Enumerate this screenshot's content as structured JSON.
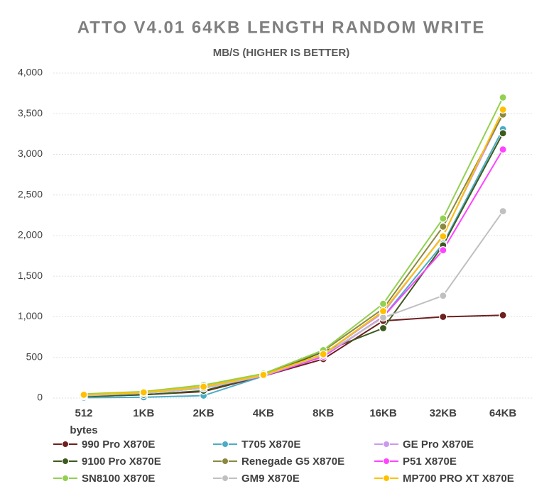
{
  "chart_data": {
    "type": "line",
    "title": "ATTO V4.01 64KB LENGTH RANDOM WRITE",
    "subtitle": "MB/S (HIGHER IS BETTER)",
    "categories": [
      "512 bytes",
      "1KB",
      "2KB",
      "4KB",
      "8KB",
      "16KB",
      "32KB",
      "64KB"
    ],
    "series": [
      {
        "name": "990 Pro X870E",
        "color": "#6e1f1f",
        "values": [
          20,
          40,
          80,
          270,
          480,
          950,
          1000,
          1020
        ]
      },
      {
        "name": "T705 X870E",
        "color": "#4bacc6",
        "values": [
          5,
          10,
          30,
          270,
          520,
          1000,
          1900,
          3310
        ]
      },
      {
        "name": "GE Pro X870E",
        "color": "#cc99ee",
        "values": [
          30,
          60,
          120,
          280,
          540,
          1050,
          2000,
          3500
        ]
      },
      {
        "name": "9100 Pro X870E",
        "color": "#3d5a1e",
        "values": [
          20,
          40,
          90,
          275,
          570,
          860,
          1880,
          3260
        ]
      },
      {
        "name": "Renegade G5 X870E",
        "color": "#8b8840",
        "values": [
          40,
          70,
          140,
          290,
          580,
          1100,
          2110,
          3490
        ]
      },
      {
        "name": "P51 X870E",
        "color": "#ff44ff",
        "values": [
          30,
          60,
          120,
          270,
          510,
          1000,
          1820,
          3060
        ]
      },
      {
        "name": "SN8100 X870E",
        "color": "#92d050",
        "values": [
          50,
          80,
          160,
          300,
          590,
          1160,
          2210,
          3700
        ]
      },
      {
        "name": "GM9 X870E",
        "color": "#c0c0c0",
        "values": [
          30,
          60,
          120,
          275,
          530,
          990,
          1260,
          2300
        ]
      },
      {
        "name": "MP700 PRO XT X870E",
        "color": "#ffc000",
        "values": [
          40,
          70,
          140,
          285,
          540,
          1070,
          1990,
          3550
        ]
      }
    ],
    "ylim": [
      0,
      4000
    ],
    "yticks": [
      0,
      500,
      {
        "value": 1000,
        "label": "1,000"
      },
      {
        "value": 1500,
        "label": "1,500"
      },
      {
        "value": 2000,
        "label": "2,000"
      },
      {
        "value": 2500,
        "label": "2,500"
      },
      {
        "value": 3000,
        "label": "3,000"
      },
      {
        "value": 3500,
        "label": "3,500"
      },
      {
        "value": 4000,
        "label": "4,000"
      }
    ],
    "grid": true
  }
}
